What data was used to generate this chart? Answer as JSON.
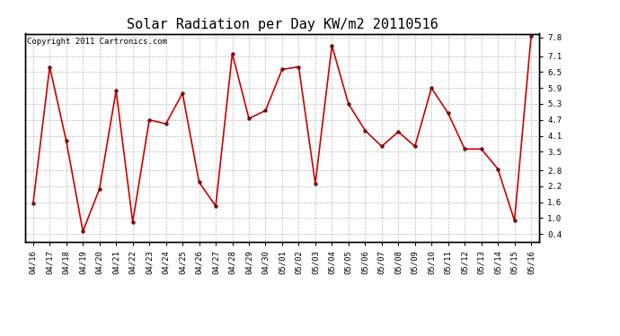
{
  "title": "Solar Radiation per Day KW/m2 20110516",
  "copyright": "Copyright 2011 Cartronics.com",
  "labels": [
    "04/16",
    "04/17",
    "04/18",
    "04/19",
    "04/20",
    "04/21",
    "04/22",
    "04/23",
    "04/24",
    "04/25",
    "04/26",
    "04/27",
    "04/28",
    "04/29",
    "04/30",
    "05/01",
    "05/02",
    "05/03",
    "05/04",
    "05/05",
    "05/06",
    "05/07",
    "05/08",
    "05/09",
    "05/10",
    "05/11",
    "05/12",
    "05/13",
    "05/14",
    "05/15",
    "05/16"
  ],
  "values": [
    1.55,
    6.7,
    3.9,
    0.5,
    2.1,
    5.8,
    0.85,
    4.7,
    4.55,
    5.7,
    2.35,
    1.45,
    7.2,
    4.75,
    5.05,
    6.6,
    6.7,
    2.3,
    7.5,
    5.3,
    4.3,
    3.7,
    4.25,
    3.7,
    5.9,
    4.95,
    3.6,
    3.6,
    2.85,
    0.9,
    7.85
  ],
  "line_color": "#cc0000",
  "marker": "o",
  "marker_size": 2.5,
  "line_width": 1.2,
  "bg_color": "#ffffff",
  "plot_bg_color": "#ffffff",
  "grid_color": "#bbbbbb",
  "yticks": [
    0.4,
    1.0,
    1.6,
    2.2,
    2.8,
    3.5,
    4.1,
    4.7,
    5.3,
    5.9,
    6.5,
    7.1,
    7.8
  ],
  "ylim": [
    0.1,
    7.95
  ],
  "title_fontsize": 11,
  "copyright_fontsize": 6.5,
  "tick_fontsize": 6.5,
  "ytick_fontsize": 6.5
}
